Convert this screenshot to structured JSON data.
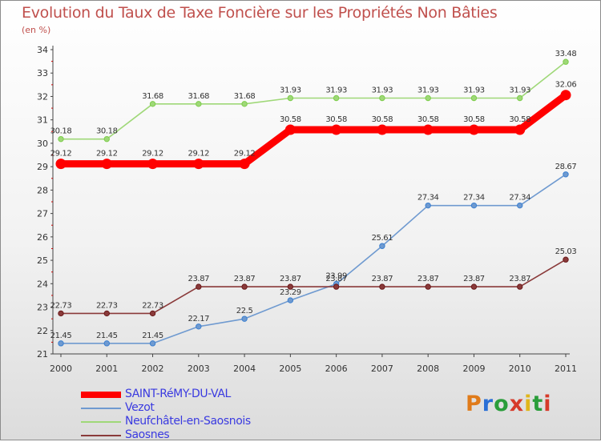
{
  "title": "Evolution du Taux de Taxe Foncière sur les Propriétés Non Bâties",
  "unit": "(en %)",
  "logo": {
    "text": "Proxiti",
    "colors": [
      "#e07b1a",
      "#2a6fd6",
      "#2a9d3a",
      "#d63a2a",
      "#e0b61a",
      "#2a9d3a",
      "#d63a2a"
    ]
  },
  "chart_data": {
    "type": "line",
    "x": [
      "2000",
      "2001",
      "2002",
      "2003",
      "2004",
      "2005",
      "2006",
      "2007",
      "2008",
      "2009",
      "2010",
      "2011"
    ],
    "ylim": [
      21,
      34
    ],
    "yticks": [
      "21",
      "22",
      "23",
      "24",
      "25",
      "26",
      "27",
      "28",
      "29",
      "30",
      "31",
      "32",
      "33",
      "34"
    ],
    "legend_position": "bottom-left",
    "series": [
      {
        "name": "SAINT-RéMY-DU-VAL",
        "color": "#ff0000",
        "marker": "#e00000",
        "bold": true,
        "values": [
          29.12,
          29.12,
          29.12,
          29.12,
          29.12,
          30.58,
          30.58,
          30.58,
          30.58,
          30.58,
          30.58,
          32.06
        ],
        "labels": [
          "29.12",
          "29.12",
          "29.12",
          "29.12",
          "29.12",
          "30.58",
          "30.58",
          "30.58",
          "30.58",
          "30.58",
          "30.58",
          "32.06"
        ]
      },
      {
        "name": "Vezot",
        "color": "#6f9ad0",
        "marker": "#3a7fd0",
        "bold": false,
        "values": [
          21.45,
          21.45,
          21.45,
          22.17,
          22.5,
          23.29,
          23.99,
          25.61,
          27.34,
          27.34,
          27.34,
          28.67
        ],
        "labels": [
          "21.45",
          "21.45",
          "21.45",
          "22.17",
          "22.5",
          "23.29",
          "23.99",
          "25.61",
          "27.34",
          "27.34",
          "27.34",
          "28.67"
        ]
      },
      {
        "name": "Neufchâtel-en-Saosnois",
        "color": "#9fd878",
        "marker": "#7ccd4a",
        "bold": false,
        "values": [
          30.18,
          30.18,
          31.68,
          31.68,
          31.68,
          31.93,
          31.93,
          31.93,
          31.93,
          31.93,
          31.93,
          33.48
        ],
        "labels": [
          "30.18",
          "30.18",
          "31.68",
          "31.68",
          "31.68",
          "31.93",
          "31.93",
          "31.93",
          "31.93",
          "31.93",
          "31.93",
          "33.48"
        ]
      },
      {
        "name": "Saosnes",
        "color": "#8a3a3a",
        "marker": "#6a1a1a",
        "bold": false,
        "values": [
          22.73,
          22.73,
          22.73,
          23.87,
          23.87,
          23.87,
          23.87,
          23.87,
          23.87,
          23.87,
          23.87,
          25.03
        ],
        "labels": [
          "22.73",
          "22.73",
          "22.73",
          "23.87",
          "23.87",
          "23.87",
          "23.87",
          "23.87",
          "23.87",
          "23.87",
          "23.87",
          "25.03"
        ]
      }
    ]
  }
}
